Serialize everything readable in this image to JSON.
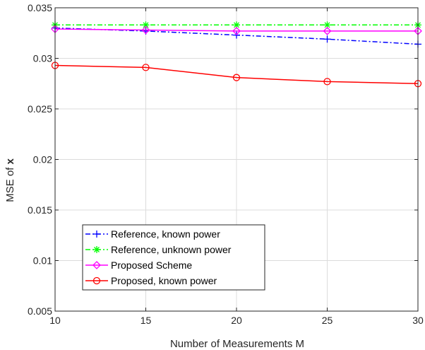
{
  "chart_data": {
    "type": "line",
    "xlabel": "Number of Measurements M",
    "ylabel_prefix": "MSE of ",
    "ylabel_symbol": "x",
    "x": [
      10,
      15,
      20,
      25,
      30
    ],
    "xlim": [
      10,
      30
    ],
    "ylim": [
      0.005,
      0.035
    ],
    "xticks": [
      10,
      15,
      20,
      25,
      30
    ],
    "yticks": [
      0.005,
      0.01,
      0.015,
      0.02,
      0.025,
      0.03,
      0.035
    ],
    "xtick_labels": [
      "10",
      "15",
      "20",
      "25",
      "30"
    ],
    "ytick_labels": [
      "0.005",
      "0.01",
      "0.015",
      "0.02",
      "0.025",
      "0.03",
      "0.035"
    ],
    "grid": true,
    "legend_position": "bottom-left",
    "series": [
      {
        "name": "Reference, known power",
        "values": [
          0.033,
          0.0327,
          0.0323,
          0.0319,
          0.0314
        ],
        "color": "#0000ff",
        "dash": "dashdot",
        "marker": "plus"
      },
      {
        "name": "Reference, unknown power",
        "values": [
          0.0333,
          0.0333,
          0.0333,
          0.0333,
          0.0333
        ],
        "color": "#00ff00",
        "dash": "dashdot",
        "marker": "star"
      },
      {
        "name": "Proposed Scheme",
        "values": [
          0.0329,
          0.0328,
          0.0327,
          0.0327,
          0.0327
        ],
        "color": "#ff00ff",
        "dash": "solid",
        "marker": "diamond"
      },
      {
        "name": "Proposed, known power",
        "values": [
          0.0293,
          0.0291,
          0.0281,
          0.0277,
          0.0275
        ],
        "color": "#ff0000",
        "dash": "solid",
        "marker": "circle"
      }
    ]
  }
}
